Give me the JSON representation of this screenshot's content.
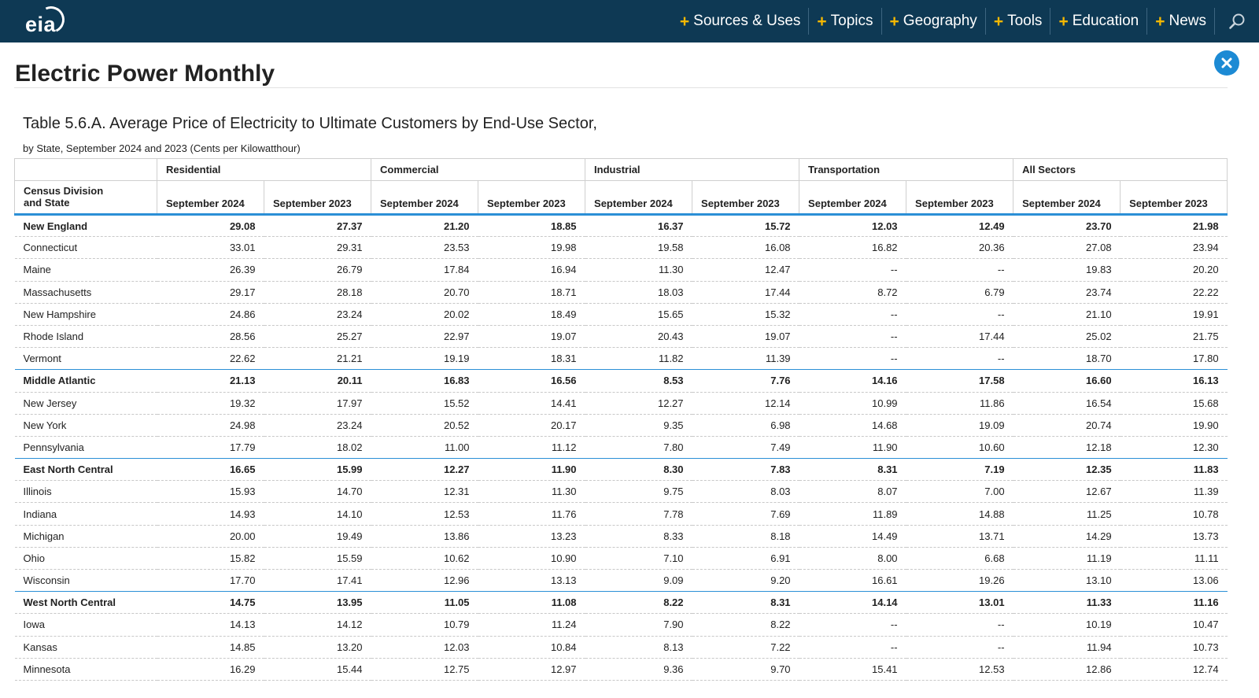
{
  "brand": {
    "logo_text": "eia"
  },
  "nav": {
    "items": [
      {
        "label": "Sources & Uses",
        "name": "nav-sources-uses"
      },
      {
        "label": "Topics",
        "name": "nav-topics"
      },
      {
        "label": "Geography",
        "name": "nav-geography"
      },
      {
        "label": "Tools",
        "name": "nav-tools"
      },
      {
        "label": "Education",
        "name": "nav-education"
      },
      {
        "label": "News",
        "name": "nav-news"
      }
    ],
    "plus_glyph": "+",
    "search_icon": "search-icon"
  },
  "colors": {
    "topbar": "#0e3954",
    "accent_plus": "#f5b800",
    "table_rule": "#2b8fd6",
    "close_button": "#1c8ad4"
  },
  "page": {
    "title": "Electric Power Monthly",
    "close_icon": "close-icon"
  },
  "table": {
    "title": "Table 5.6.A. Average Price of Electricity to Ultimate Customers by End-Use Sector,",
    "subtitle": "by State, September 2024 and 2023 (Cents per Kilowatthour)",
    "sectors": [
      "Residential",
      "Commercial",
      "Industrial",
      "Transportation",
      "All Sectors"
    ],
    "row_header": "Census Division and State",
    "period_headers": [
      "September 2024",
      "September 2023"
    ],
    "rows": [
      {
        "name": "New England",
        "region": true,
        "values": [
          "29.08",
          "27.37",
          "21.20",
          "18.85",
          "16.37",
          "15.72",
          "12.03",
          "12.49",
          "23.70",
          "21.98"
        ]
      },
      {
        "name": "Connecticut",
        "region": false,
        "values": [
          "33.01",
          "29.31",
          "23.53",
          "19.98",
          "19.58",
          "16.08",
          "16.82",
          "20.36",
          "27.08",
          "23.94"
        ]
      },
      {
        "name": "Maine",
        "region": false,
        "values": [
          "26.39",
          "26.79",
          "17.84",
          "16.94",
          "11.30",
          "12.47",
          "--",
          "--",
          "19.83",
          "20.20"
        ]
      },
      {
        "name": "Massachusetts",
        "region": false,
        "values": [
          "29.17",
          "28.18",
          "20.70",
          "18.71",
          "18.03",
          "17.44",
          "8.72",
          "6.79",
          "23.74",
          "22.22"
        ]
      },
      {
        "name": "New Hampshire",
        "region": false,
        "values": [
          "24.86",
          "23.24",
          "20.02",
          "18.49",
          "15.65",
          "15.32",
          "--",
          "--",
          "21.10",
          "19.91"
        ]
      },
      {
        "name": "Rhode Island",
        "region": false,
        "values": [
          "28.56",
          "25.27",
          "22.97",
          "19.07",
          "20.43",
          "19.07",
          "--",
          "17.44",
          "25.02",
          "21.75"
        ]
      },
      {
        "name": "Vermont",
        "region": false,
        "values": [
          "22.62",
          "21.21",
          "19.19",
          "18.31",
          "11.82",
          "11.39",
          "--",
          "--",
          "18.70",
          "17.80"
        ]
      },
      {
        "name": "Middle Atlantic",
        "region": true,
        "values": [
          "21.13",
          "20.11",
          "16.83",
          "16.56",
          "8.53",
          "7.76",
          "14.16",
          "17.58",
          "16.60",
          "16.13"
        ]
      },
      {
        "name": "New Jersey",
        "region": false,
        "values": [
          "19.32",
          "17.97",
          "15.52",
          "14.41",
          "12.27",
          "12.14",
          "10.99",
          "11.86",
          "16.54",
          "15.68"
        ]
      },
      {
        "name": "New York",
        "region": false,
        "values": [
          "24.98",
          "23.24",
          "20.52",
          "20.17",
          "9.35",
          "6.98",
          "14.68",
          "19.09",
          "20.74",
          "19.90"
        ]
      },
      {
        "name": "Pennsylvania",
        "region": false,
        "values": [
          "17.79",
          "18.02",
          "11.00",
          "11.12",
          "7.80",
          "7.49",
          "11.90",
          "10.60",
          "12.18",
          "12.30"
        ]
      },
      {
        "name": "East North Central",
        "region": true,
        "values": [
          "16.65",
          "15.99",
          "12.27",
          "11.90",
          "8.30",
          "7.83",
          "8.31",
          "7.19",
          "12.35",
          "11.83"
        ]
      },
      {
        "name": "Illinois",
        "region": false,
        "values": [
          "15.93",
          "14.70",
          "12.31",
          "11.30",
          "9.75",
          "8.03",
          "8.07",
          "7.00",
          "12.67",
          "11.39"
        ]
      },
      {
        "name": "Indiana",
        "region": false,
        "values": [
          "14.93",
          "14.10",
          "12.53",
          "11.76",
          "7.78",
          "7.69",
          "11.89",
          "14.88",
          "11.25",
          "10.78"
        ]
      },
      {
        "name": "Michigan",
        "region": false,
        "values": [
          "20.00",
          "19.49",
          "13.86",
          "13.23",
          "8.33",
          "8.18",
          "14.49",
          "13.71",
          "14.29",
          "13.73"
        ]
      },
      {
        "name": "Ohio",
        "region": false,
        "values": [
          "15.82",
          "15.59",
          "10.62",
          "10.90",
          "7.10",
          "6.91",
          "8.00",
          "6.68",
          "11.19",
          "11.11"
        ]
      },
      {
        "name": "Wisconsin",
        "region": false,
        "values": [
          "17.70",
          "17.41",
          "12.96",
          "13.13",
          "9.09",
          "9.20",
          "16.61",
          "19.26",
          "13.10",
          "13.06"
        ]
      },
      {
        "name": "West North Central",
        "region": true,
        "values": [
          "14.75",
          "13.95",
          "11.05",
          "11.08",
          "8.22",
          "8.31",
          "14.14",
          "13.01",
          "11.33",
          "11.16"
        ]
      },
      {
        "name": "Iowa",
        "region": false,
        "values": [
          "14.13",
          "14.12",
          "10.79",
          "11.24",
          "7.90",
          "8.22",
          "--",
          "--",
          "10.19",
          "10.47"
        ]
      },
      {
        "name": "Kansas",
        "region": false,
        "values": [
          "14.85",
          "13.20",
          "12.03",
          "10.84",
          "8.13",
          "7.22",
          "--",
          "--",
          "11.94",
          "10.73"
        ]
      },
      {
        "name": "Minnesota",
        "region": false,
        "values": [
          "16.29",
          "15.44",
          "12.75",
          "12.97",
          "9.36",
          "9.70",
          "15.41",
          "12.53",
          "12.86",
          "12.74"
        ]
      }
    ]
  }
}
